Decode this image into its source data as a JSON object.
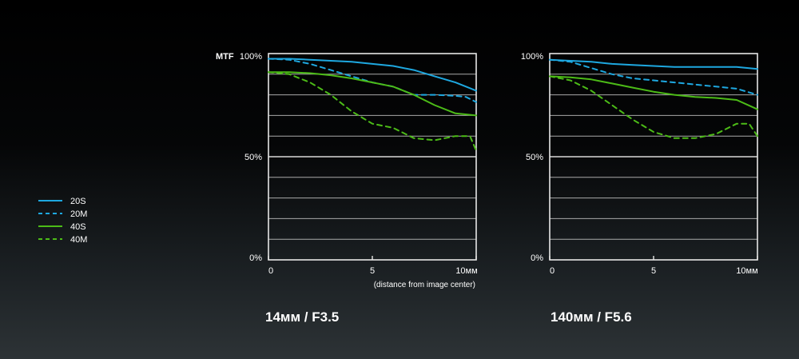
{
  "chart_data": [
    {
      "type": "line",
      "title": "14мм / F3.5",
      "ylabel": "MTF",
      "xlabel": "(distance from image center)",
      "xlim": [
        0,
        10
      ],
      "ylim": [
        0,
        100
      ],
      "x_ticks": [
        "0",
        "5",
        "10мм"
      ],
      "y_ticks": [
        "100%",
        "50%",
        "0%"
      ],
      "grid": true,
      "series": [
        {
          "name": "20S",
          "color": "#1ea8e0",
          "dash": false,
          "x": [
            0,
            1,
            2,
            3,
            4,
            5,
            6,
            7,
            8,
            9,
            10
          ],
          "y": [
            97.5,
            97.5,
            97,
            96.5,
            96,
            95,
            94,
            92,
            89,
            86,
            82
          ]
        },
        {
          "name": "20M",
          "color": "#1ea8e0",
          "dash": true,
          "x": [
            0,
            1,
            2,
            3,
            4,
            5,
            6,
            7,
            8,
            9,
            9.5,
            10
          ],
          "y": [
            97.5,
            97,
            95,
            92,
            89,
            86,
            84,
            80,
            80,
            79.5,
            79,
            76.5
          ]
        },
        {
          "name": "40S",
          "color": "#4cbb17",
          "dash": false,
          "x": [
            0,
            1,
            2,
            3,
            4,
            5,
            6,
            7,
            8,
            9,
            10
          ],
          "y": [
            91,
            91,
            90.5,
            89.5,
            88,
            86,
            84,
            80,
            75,
            71,
            70
          ]
        },
        {
          "name": "40M",
          "color": "#4cbb17",
          "dash": true,
          "x": [
            0,
            1,
            2,
            3,
            4,
            5,
            6,
            7,
            8,
            9,
            9.7,
            10
          ],
          "y": [
            91,
            90,
            86,
            80,
            72,
            66,
            64,
            59,
            58,
            60,
            60,
            53
          ]
        }
      ]
    },
    {
      "type": "line",
      "title": "140мм / F5.6",
      "xlim": [
        0,
        10
      ],
      "ylim": [
        0,
        100
      ],
      "x_ticks": [
        "0",
        "5",
        "10мм"
      ],
      "y_ticks": [
        "100%",
        "50%",
        "0%"
      ],
      "grid": true,
      "series": [
        {
          "name": "20S",
          "color": "#1ea8e0",
          "dash": false,
          "x": [
            0,
            1,
            2,
            3,
            4,
            5,
            6,
            7,
            8,
            9,
            10
          ],
          "y": [
            97,
            96.5,
            96,
            95,
            94.5,
            94,
            93.5,
            93.5,
            93.5,
            93.5,
            92.5
          ]
        },
        {
          "name": "20M",
          "color": "#1ea8e0",
          "dash": true,
          "x": [
            0,
            1,
            2,
            3,
            4,
            5,
            6,
            7,
            8,
            9,
            10
          ],
          "y": [
            97,
            96,
            93,
            90,
            88,
            87,
            86,
            85,
            84,
            83,
            80
          ]
        },
        {
          "name": "40S",
          "color": "#4cbb17",
          "dash": false,
          "x": [
            0,
            1,
            2,
            3,
            4,
            5,
            6,
            7,
            8,
            9,
            10
          ],
          "y": [
            89,
            88.5,
            87.5,
            85.5,
            83.5,
            81.5,
            80,
            79,
            78.5,
            77.5,
            73
          ]
        },
        {
          "name": "40M",
          "color": "#4cbb17",
          "dash": true,
          "x": [
            0,
            1,
            2,
            3,
            4,
            5,
            6,
            7,
            8,
            9,
            9.6,
            10
          ],
          "y": [
            89,
            87,
            82,
            75,
            68,
            62,
            59,
            59,
            61,
            66,
            66,
            60
          ]
        }
      ]
    }
  ],
  "legend": {
    "placement": "left",
    "items": [
      {
        "label": "20S",
        "color": "#1ea8e0",
        "dash": false
      },
      {
        "label": "20M",
        "color": "#1ea8e0",
        "dash": true
      },
      {
        "label": "40S",
        "color": "#4cbb17",
        "dash": false
      },
      {
        "label": "40M",
        "color": "#4cbb17",
        "dash": true
      }
    ]
  }
}
